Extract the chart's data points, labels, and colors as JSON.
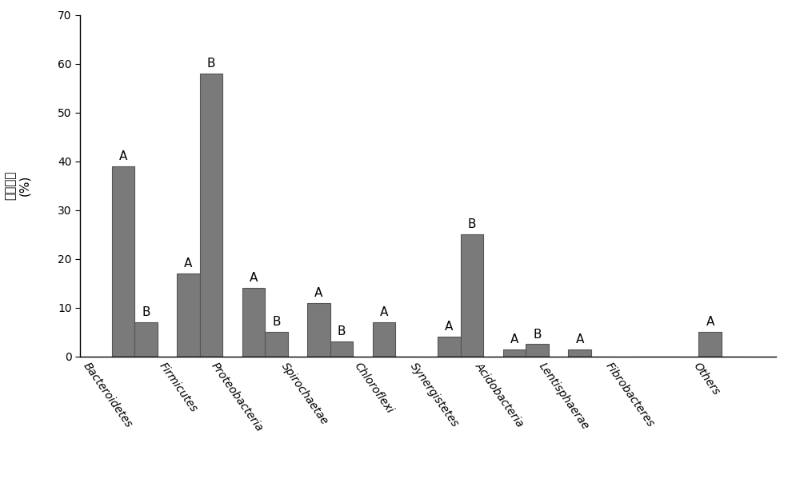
{
  "categories": [
    "Bacteroidetes",
    "Firmicutes",
    "Proteobacteria",
    "Spirochaetae",
    "Chloroflexi",
    "Synergistetes",
    "Acidobacteria",
    "Lentisphaerae",
    "Fibrobacteres",
    "Others"
  ],
  "series_A": [
    39.0,
    17.0,
    14.0,
    11.0,
    7.0,
    4.0,
    1.5,
    1.5,
    0.0,
    5.0
  ],
  "series_B": [
    7.0,
    58.0,
    5.0,
    3.0,
    0.0,
    25.0,
    2.5,
    0.0,
    0.0,
    0.0
  ],
  "labels_A": [
    "A",
    "A",
    "A",
    "A",
    "A",
    "A",
    "A",
    "A",
    "",
    "A"
  ],
  "labels_B": [
    "B",
    "B",
    "B",
    "B",
    "",
    "B",
    "B",
    "",
    "",
    ""
  ],
  "bar_color": "#7a7a7a",
  "bar_edge_color": "#555555",
  "ylabel_line1": "相对丰度",
  "ylabel_line2": "(%)",
  "ylim": [
    0,
    70
  ],
  "yticks": [
    0,
    10,
    20,
    30,
    40,
    50,
    60,
    70
  ],
  "bar_width": 0.35,
  "label_fontsize": 11,
  "tick_fontsize": 10,
  "ylabel_fontsize": 11,
  "background_color": "#ffffff",
  "plot_bg_color": "#ffffff",
  "figsize": [
    10.0,
    6.19
  ],
  "dpi": 100
}
